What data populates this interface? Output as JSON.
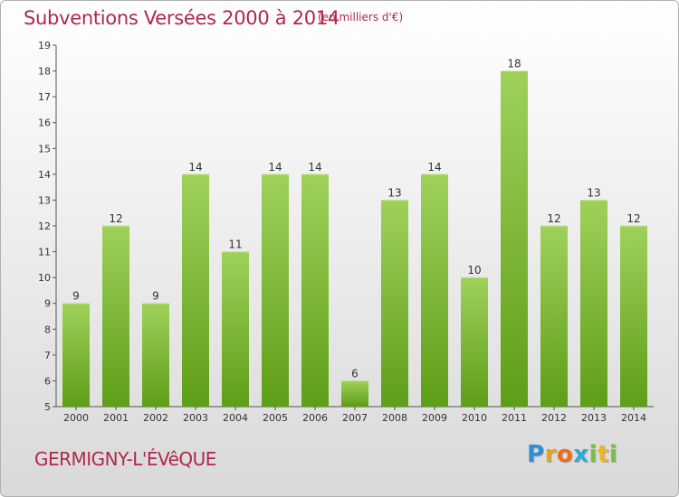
{
  "header": {
    "title": "Subventions Versées 2000 à 2014",
    "subtitle": "(en milliers d'€)"
  },
  "footer": {
    "commune": "GERMIGNY-L'ÉVêQUE",
    "logo_letters": [
      "P",
      "r",
      "o",
      "x",
      "i",
      "t",
      "i"
    ],
    "logo_colors": [
      "#2e8fd8",
      "#e8a21c",
      "#ef6c1a",
      "#2ea9d8",
      "#7ac143",
      "#f2b51d",
      "#7ac143"
    ]
  },
  "chart_data": {
    "type": "bar",
    "title": "Subventions Versées 2000 à 2014",
    "subtitle": "(en milliers d'€)",
    "xlabel": "",
    "ylabel": "",
    "categories": [
      "2000",
      "2001",
      "2002",
      "2003",
      "2004",
      "2005",
      "2006",
      "2007",
      "2008",
      "2009",
      "2010",
      "2011",
      "2012",
      "2013",
      "2014"
    ],
    "values": [
      9,
      12,
      9,
      14,
      11,
      14,
      14,
      6,
      13,
      14,
      10,
      18,
      12,
      13,
      12
    ],
    "ylim": [
      5,
      19
    ],
    "yticks": [
      "5",
      "6",
      "7",
      "8",
      "9",
      "10",
      "11",
      "12",
      "13",
      "14",
      "15",
      "16",
      "17",
      "18",
      "19"
    ],
    "grid": false,
    "bar_color_top": "#9fd15a",
    "bar_color_bottom": "#5e9e17"
  }
}
